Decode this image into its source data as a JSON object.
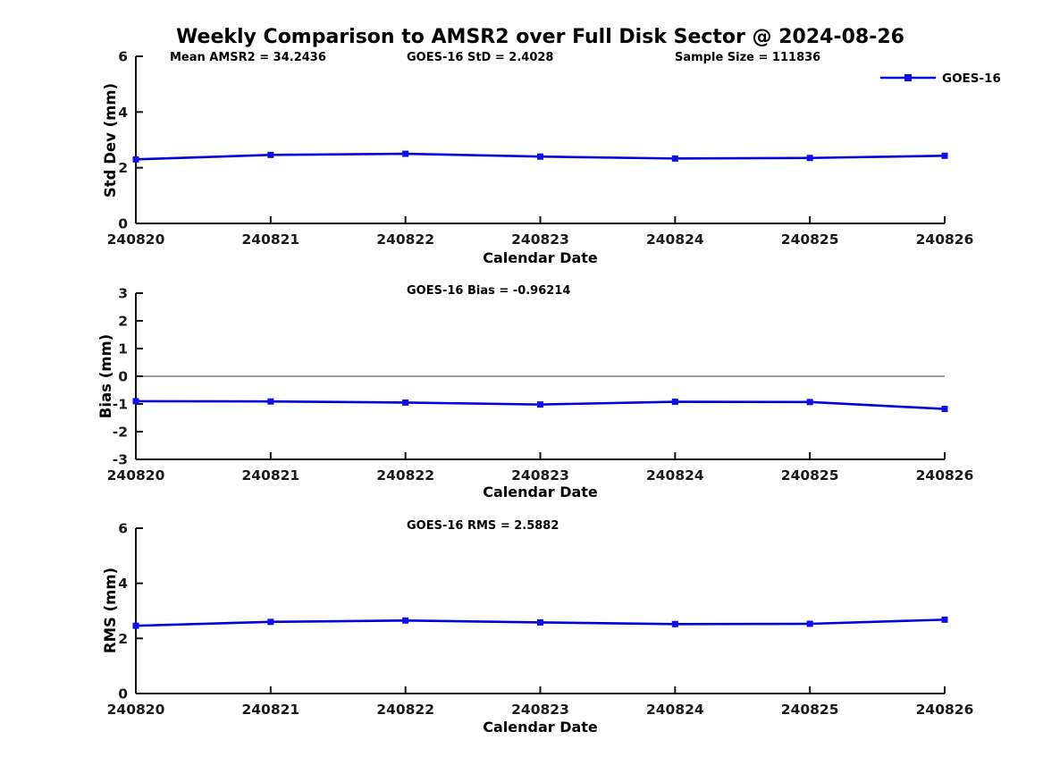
{
  "title": "Weekly Comparison to AMSR2 over Full Disk Sector @ 2024-08-26",
  "legend": {
    "label": "GOES-16"
  },
  "colors": {
    "series_line": "#0000DD",
    "marker_fill": "#0F0FE8",
    "zero_line": "#7F7F7F",
    "axis": "#111111",
    "tick_label": "#1A1A1A"
  },
  "chart_data": [
    {
      "type": "line",
      "panel": "std-dev",
      "annotations": [
        "Mean AMSR2 = 34.2436",
        "GOES-16 StD = 2.4028",
        "Sample Size = 111836"
      ],
      "ylabel": "Std Dev (mm)",
      "xlabel": "Calendar Date",
      "categories": [
        "240820",
        "240821",
        "240822",
        "240823",
        "240824",
        "240825",
        "240826"
      ],
      "series": [
        {
          "name": "GOES-16",
          "values": [
            2.3,
            2.46,
            2.5,
            2.4,
            2.33,
            2.35,
            2.43
          ]
        }
      ],
      "ylim": [
        0,
        6
      ],
      "yticks": [
        0,
        2,
        4,
        6
      ],
      "grid": false,
      "legend_position": "top-right",
      "zero_line": false
    },
    {
      "type": "line",
      "panel": "bias",
      "annotations": [
        "GOES-16 Bias  = -0.96214"
      ],
      "ylabel": "Bias (mm)",
      "xlabel": "Calendar Date",
      "categories": [
        "240820",
        "240821",
        "240822",
        "240823",
        "240824",
        "240825",
        "240826"
      ],
      "series": [
        {
          "name": "GOES-16",
          "values": [
            -0.9,
            -0.91,
            -0.95,
            -1.02,
            -0.92,
            -0.93,
            -1.18
          ]
        }
      ],
      "ylim": [
        -3,
        3
      ],
      "yticks": [
        -3,
        -2,
        -1,
        0,
        1,
        2,
        3
      ],
      "grid": false,
      "zero_line": true
    },
    {
      "type": "line",
      "panel": "rms",
      "annotations": [
        "GOES-16 RMS = 2.5882"
      ],
      "ylabel": "RMS (mm)",
      "xlabel": "Calendar Date",
      "categories": [
        "240820",
        "240821",
        "240822",
        "240823",
        "240824",
        "240825",
        "240826"
      ],
      "series": [
        {
          "name": "GOES-16",
          "values": [
            2.46,
            2.6,
            2.65,
            2.58,
            2.52,
            2.53,
            2.68
          ]
        }
      ],
      "ylim": [
        0,
        6
      ],
      "yticks": [
        0,
        2,
        4,
        6
      ],
      "grid": false,
      "zero_line": false
    }
  ]
}
